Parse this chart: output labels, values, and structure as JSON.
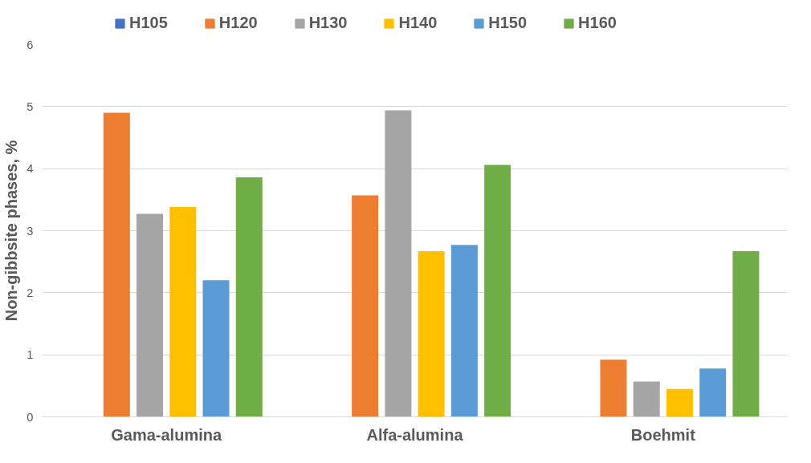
{
  "chart_data": {
    "type": "bar",
    "ylabel": "Non-gibbsite phases, %",
    "categories": [
      "Gama-alumina",
      "Alfa-alumina",
      "Boehmit"
    ],
    "series": [
      {
        "name": "H105",
        "color": "#4472c4",
        "values": [
          0,
          0,
          0
        ]
      },
      {
        "name": "H120",
        "color": "#ed7d31",
        "values": [
          4.9,
          3.57,
          0.92
        ]
      },
      {
        "name": "H130",
        "color": "#a5a5a5",
        "values": [
          3.27,
          4.94,
          0.57
        ]
      },
      {
        "name": "H140",
        "color": "#ffc000",
        "values": [
          3.38,
          2.67,
          0.45
        ]
      },
      {
        "name": "H150",
        "color": "#5b9bd5",
        "values": [
          2.2,
          2.77,
          0.78
        ]
      },
      {
        "name": "H160",
        "color": "#70ad47",
        "values": [
          3.86,
          4.06,
          2.67
        ]
      }
    ],
    "ylim": [
      0,
      6
    ],
    "yticks": [
      0,
      1,
      2,
      3,
      4,
      5,
      6
    ],
    "grid": "y",
    "legend": "top"
  }
}
